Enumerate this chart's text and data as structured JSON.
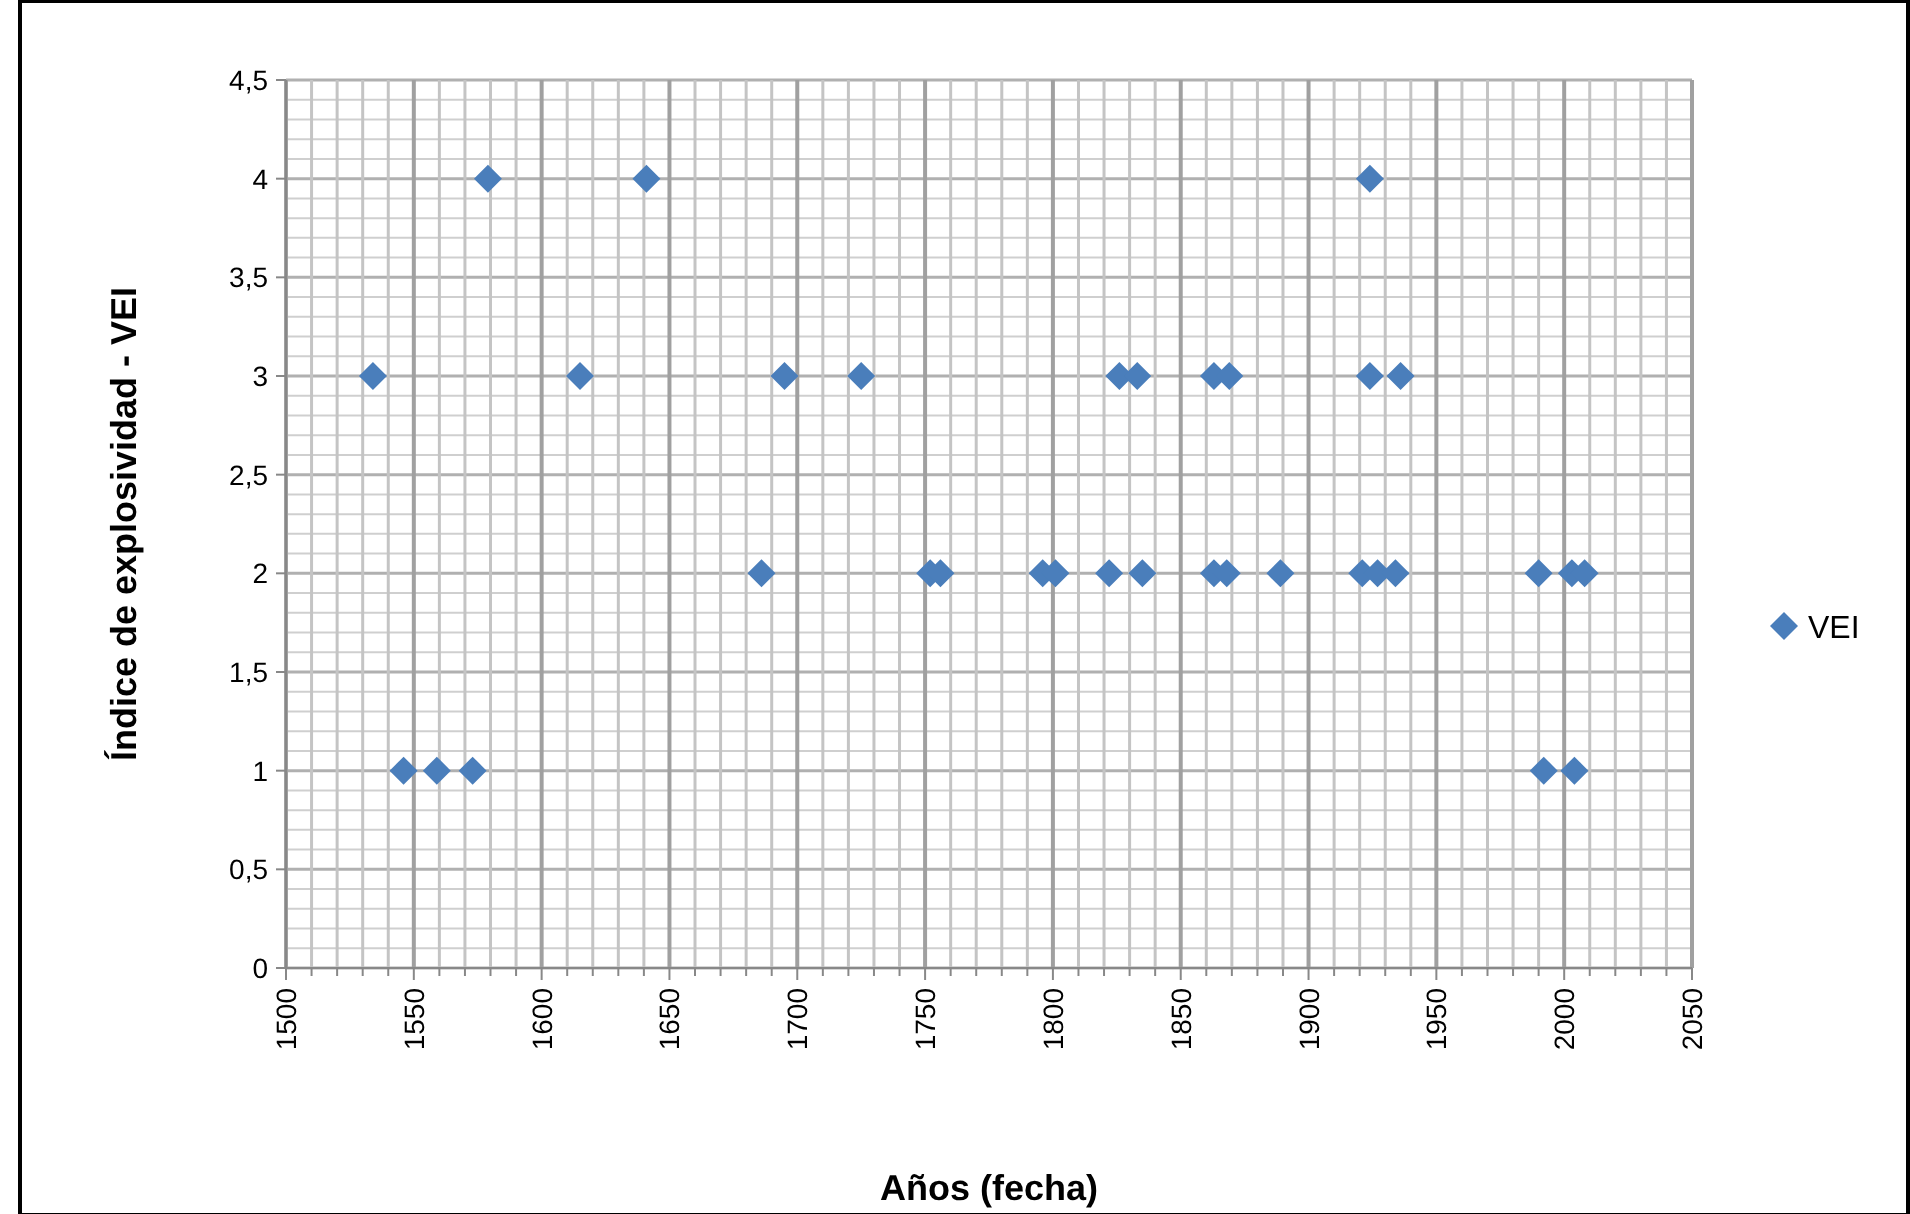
{
  "chart_data": {
    "type": "scatter",
    "xlabel": "Años (fecha)",
    "ylabel": "Índice de explosividad - VEI",
    "series": [
      {
        "name": "VEI",
        "color": "#4a7ebb",
        "x": [
          1579,
          1641,
          1924,
          1534,
          1615,
          1695,
          1725,
          1826,
          1833,
          1863,
          1869,
          1924,
          1936,
          1686,
          1752,
          1756,
          1796,
          1801,
          1822,
          1835,
          1863,
          1868,
          1889,
          1921,
          1927,
          1934,
          1990,
          2003,
          2008,
          1546,
          1559,
          1573,
          1992,
          2004
        ],
        "values": [
          4,
          4,
          4,
          3,
          3,
          3,
          3,
          3,
          3,
          3,
          3,
          3,
          3,
          2,
          2,
          2,
          2,
          2,
          2,
          2,
          2,
          2,
          2,
          2,
          2,
          2,
          2,
          2,
          2,
          1,
          1,
          1,
          1,
          1
        ]
      }
    ],
    "xlim": [
      1500,
      2050
    ],
    "xticks": [
      1500,
      {
        "value": 1510,
        "label": null
      },
      {
        "value": 1520,
        "label": null
      },
      {
        "value": 1530,
        "label": null
      },
      {
        "value": 1540,
        "label": null
      },
      1550,
      {
        "value": 1560,
        "label": null
      },
      {
        "value": 1570,
        "label": null
      },
      {
        "value": 1580,
        "label": null
      },
      {
        "value": 1590,
        "label": null
      },
      1600,
      {
        "value": 1610,
        "label": null
      },
      {
        "value": 1620,
        "label": null
      },
      {
        "value": 1630,
        "label": null
      },
      {
        "value": 1640,
        "label": null
      },
      1650,
      {
        "value": 1660,
        "label": null
      },
      {
        "value": 1670,
        "label": null
      },
      {
        "value": 1680,
        "label": null
      },
      {
        "value": 1690,
        "label": null
      },
      1700,
      {
        "value": 1710,
        "label": null
      },
      {
        "value": 1720,
        "label": null
      },
      {
        "value": 1730,
        "label": null
      },
      {
        "value": 1740,
        "label": null
      },
      1750,
      {
        "value": 1760,
        "label": null
      },
      {
        "value": 1770,
        "label": null
      },
      {
        "value": 1780,
        "label": null
      },
      {
        "value": 1790,
        "label": null
      },
      1800,
      {
        "value": 1810,
        "label": null
      },
      {
        "value": 1820,
        "label": null
      },
      {
        "value": 1830,
        "label": null
      },
      {
        "value": 1840,
        "label": null
      },
      1850,
      {
        "value": 1860,
        "label": null
      },
      {
        "value": 1870,
        "label": null
      },
      {
        "value": 1880,
        "label": null
      },
      {
        "value": 1890,
        "label": null
      },
      1900,
      {
        "value": 1910,
        "label": null
      },
      {
        "value": 1920,
        "label": null
      },
      {
        "value": 1930,
        "label": null
      },
      {
        "value": 1940,
        "label": null
      },
      1950,
      {
        "value": 1960,
        "label": null
      },
      {
        "value": 1970,
        "label": null
      },
      {
        "value": 1980,
        "label": null
      },
      {
        "value": 1990,
        "label": null
      },
      2000,
      {
        "value": 2010,
        "label": null
      },
      {
        "value": 2020,
        "label": null
      },
      {
        "value": 2030,
        "label": null
      },
      {
        "value": 2040,
        "label": null
      },
      2050
    ],
    "ylim": [
      0,
      4.5
    ],
    "yticks": [
      {
        "value": 0,
        "label": "0"
      },
      {
        "value": 0.5,
        "label": "0,5"
      },
      {
        "value": 1,
        "label": "1"
      },
      {
        "value": 1.5,
        "label": "1,5"
      },
      {
        "value": 2,
        "label": "2"
      },
      {
        "value": 2.5,
        "label": "2,5"
      },
      {
        "value": 3,
        "label": "3"
      },
      {
        "value": 3.5,
        "label": "3,5"
      },
      {
        "value": 4,
        "label": "4"
      },
      {
        "value": 4.5,
        "label": "4,5"
      }
    ],
    "grid": true,
    "legend": "right",
    "marker": "diamond"
  }
}
